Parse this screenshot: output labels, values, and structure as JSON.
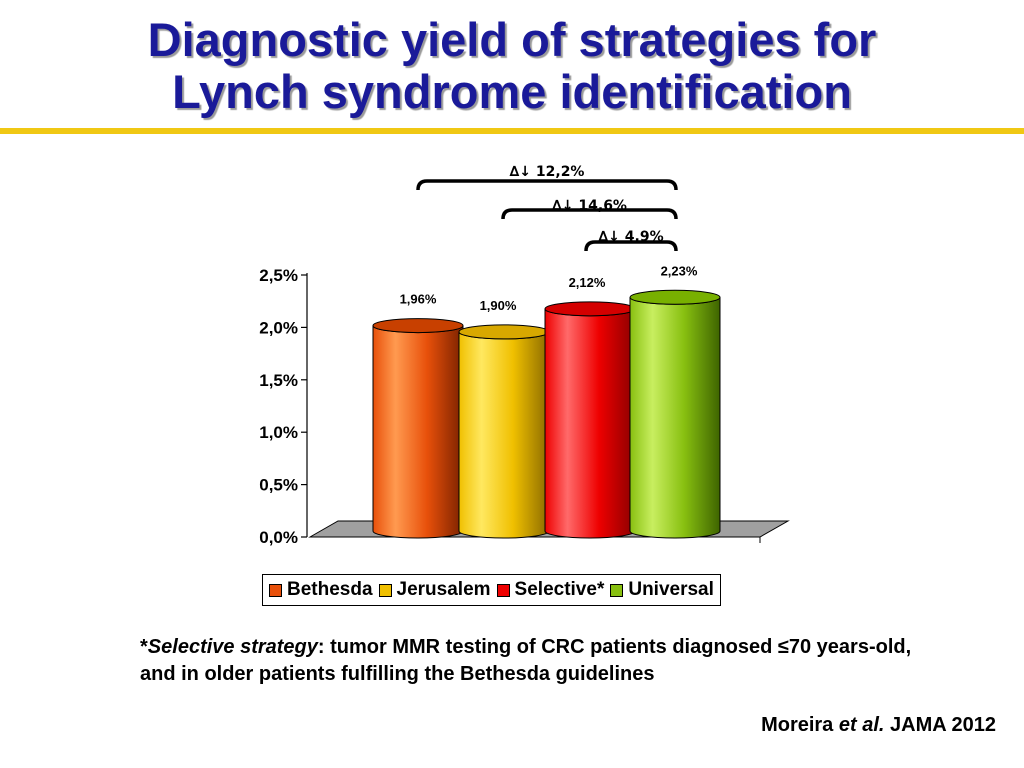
{
  "title": {
    "line1": "Diagnostic yield of strategies for",
    "line2": "Lynch syndrome identification"
  },
  "colors": {
    "title": "#1a1a99",
    "rule": "#f0c814",
    "bethesda": "#e8500a",
    "jerusalem": "#f0c000",
    "selective": "#ee0000",
    "universal": "#88c010"
  },
  "chart_data": {
    "type": "bar",
    "style": "3d-cylinder",
    "categories": [
      "Bethesda",
      "Jerusalem",
      "Selective*",
      "Universal"
    ],
    "values": [
      1.96,
      1.9,
      2.12,
      2.23
    ],
    "data_labels": [
      "1,96%",
      "1,90%",
      "2,12%",
      "2,23%"
    ],
    "y_ticks": [
      0,
      0.5,
      1.0,
      1.5,
      2.0,
      2.5
    ],
    "y_tick_labels": [
      "0,0%",
      "0,5%",
      "1,0%",
      "1,5%",
      "2,0%",
      "2,5%"
    ],
    "ylim": [
      0,
      2.5
    ],
    "grid": false,
    "legend_position": "bottom",
    "annotations": [
      {
        "from": 0,
        "to": 3,
        "label": "∆↓ 12,2%"
      },
      {
        "from": 1,
        "to": 3,
        "label": "∆↓ 14,6%"
      },
      {
        "from": 2,
        "to": 3,
        "label": "∆↓ 4,9%"
      }
    ]
  },
  "legend": {
    "items": [
      "Bethesda",
      "Jerusalem",
      "Selective*",
      "Universal"
    ]
  },
  "footnote": {
    "star": "*",
    "term": "Selective strategy",
    "rest": ": tumor MMR testing of CRC patients diagnosed ≤70 years-old, and in older patients fulfilling the Bethesda guidelines"
  },
  "citation": {
    "author": "Moreira ",
    "etal": "et al.",
    "journal": " JAMA 2012"
  }
}
